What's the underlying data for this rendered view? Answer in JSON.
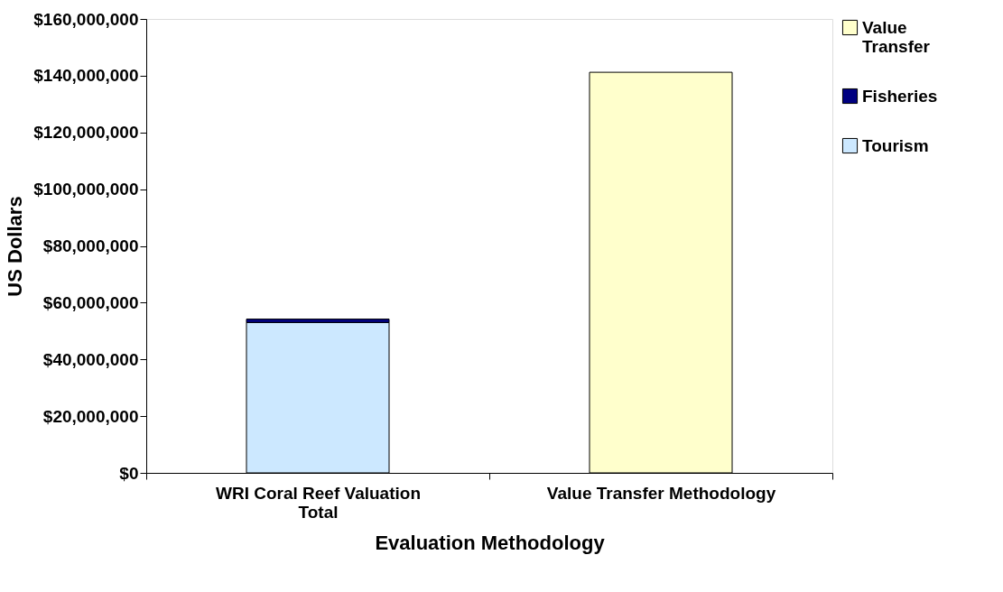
{
  "chart_data": {
    "type": "bar",
    "stacked": true,
    "xlabel": "Evaluation Methodology",
    "ylabel": "US Dollars",
    "categories": [
      "WRI Coral Reef Valuation Total",
      "Value Transfer Methodology"
    ],
    "series": [
      {
        "name": "Tourism",
        "color": "#cce8ff",
        "values": [
          53000000,
          null
        ]
      },
      {
        "name": "Fisheries",
        "color": "#000080",
        "values": [
          1200000,
          null
        ]
      },
      {
        "name": "Value Transfer",
        "color": "#ffffcc",
        "values": [
          null,
          141200000
        ]
      }
    ],
    "ylim": [
      0,
      160000000
    ],
    "yticks": [
      {
        "value": 0,
        "label": "$0"
      },
      {
        "value": 20000000,
        "label": "$20,000,000"
      },
      {
        "value": 40000000,
        "label": "$40,000,000"
      },
      {
        "value": 60000000,
        "label": "$60,000,000"
      },
      {
        "value": 80000000,
        "label": "$80,000,000"
      },
      {
        "value": 100000000,
        "label": "$100,000,000"
      },
      {
        "value": 120000000,
        "label": "$120,000,000"
      },
      {
        "value": 140000000,
        "label": "$140,000,000"
      },
      {
        "value": 160000000,
        "label": "$160,000,000"
      }
    ],
    "grid": false,
    "legend": "right"
  }
}
